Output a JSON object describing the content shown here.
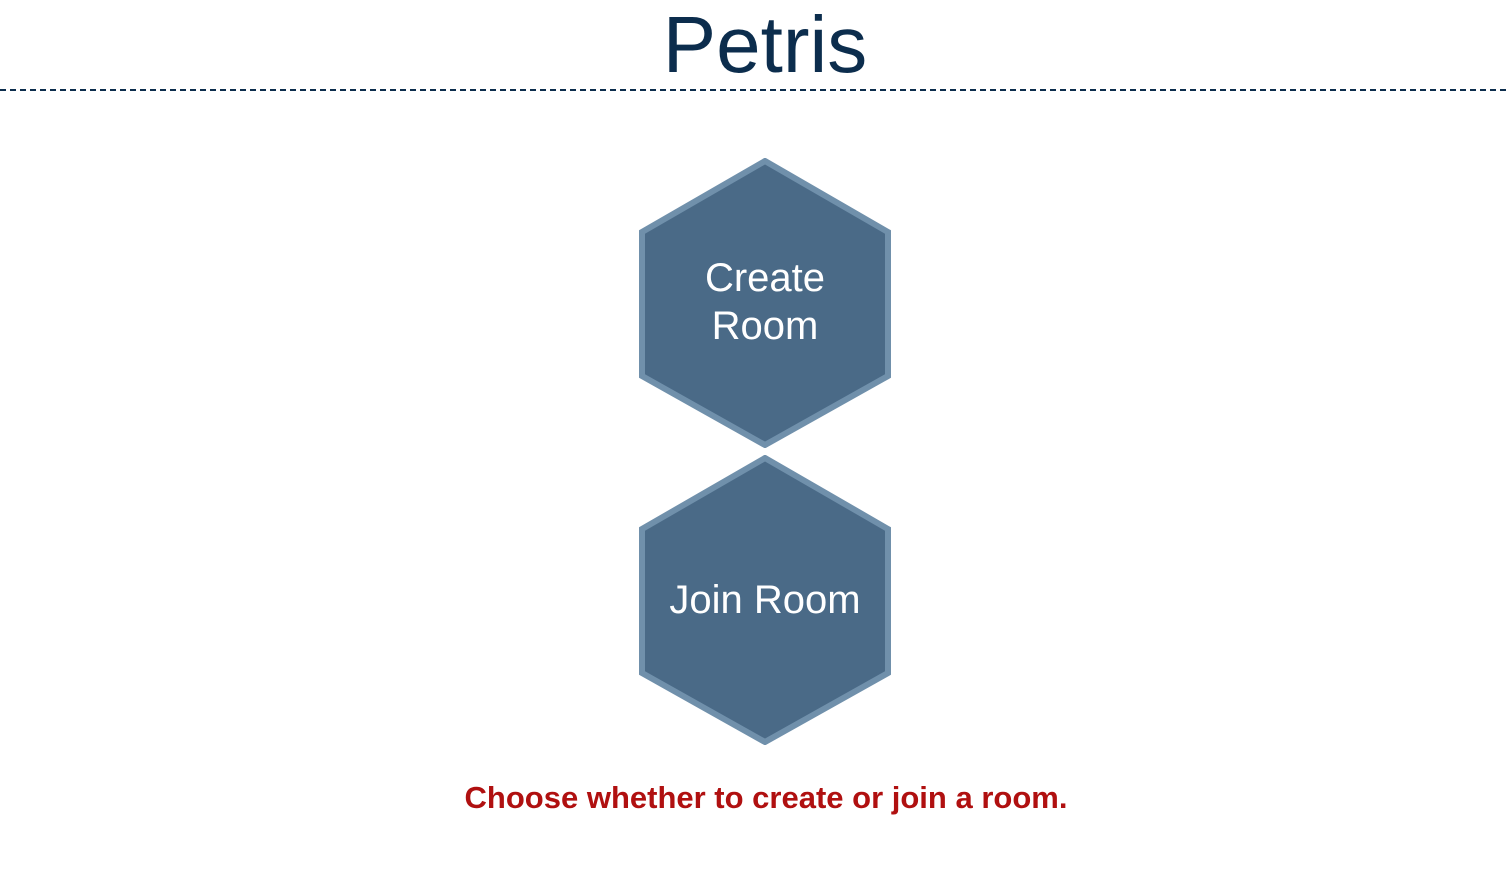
{
  "app": {
    "title": "Petris"
  },
  "menu": {
    "create_label_line1": "Create",
    "create_label_line2": "Room",
    "join_label": "Join Room"
  },
  "instruction": "Choose whether to create or join a room.",
  "colors": {
    "title": "#0c2d4d",
    "hex_fill": "#4a6a87",
    "hex_border": "#7090ab",
    "hex_text": "#ffffff",
    "instruction": "#b01010"
  }
}
